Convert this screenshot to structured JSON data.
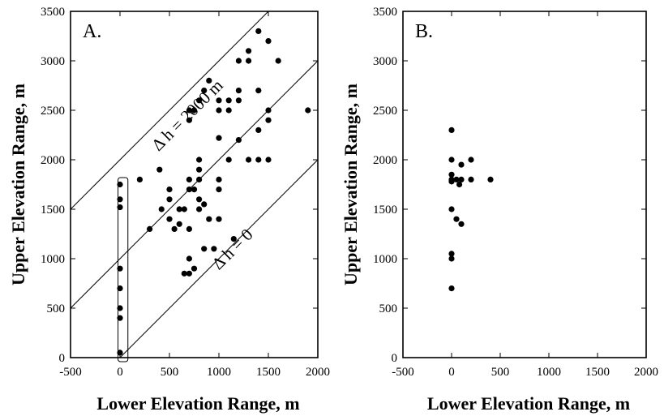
{
  "chart_data": [
    {
      "type": "scatter",
      "panel_label": "A.",
      "xlabel": "Lower Elevation Range, m",
      "ylabel": "Upper Elevation Range, m",
      "xlim": [
        -500,
        2000
      ],
      "ylim": [
        0,
        3500
      ],
      "xticks": [
        -500,
        0,
        500,
        1000,
        1500,
        2000
      ],
      "yticks": [
        0,
        500,
        1000,
        1500,
        2000,
        2500,
        3000,
        3500
      ],
      "grid": false,
      "annotations": [
        {
          "text": "Δ h = 2000 m",
          "kind": "reference-line",
          "offset": 2000
        },
        {
          "text": "Δ h = 0",
          "kind": "reference-line",
          "offset": 0
        }
      ],
      "reference_lines": [
        {
          "label": "",
          "offset": 1000
        }
      ],
      "highlight_box": {
        "x_range": [
          -20,
          80
        ],
        "y_range": [
          0,
          1820
        ]
      },
      "points": [
        [
          0,
          1750
        ],
        [
          0,
          1600
        ],
        [
          0,
          1520
        ],
        [
          0,
          900
        ],
        [
          0,
          700
        ],
        [
          0,
          500
        ],
        [
          0,
          400
        ],
        [
          0,
          50
        ],
        [
          200,
          1800
        ],
        [
          300,
          1300
        ],
        [
          400,
          1900
        ],
        [
          420,
          1500
        ],
        [
          500,
          1700
        ],
        [
          500,
          1600
        ],
        [
          500,
          1400
        ],
        [
          550,
          1300
        ],
        [
          600,
          1500
        ],
        [
          600,
          1350
        ],
        [
          650,
          1500
        ],
        [
          650,
          850
        ],
        [
          700,
          2500
        ],
        [
          700,
          2400
        ],
        [
          700,
          1800
        ],
        [
          700,
          1700
        ],
        [
          700,
          1300
        ],
        [
          700,
          1000
        ],
        [
          700,
          850
        ],
        [
          750,
          2500
        ],
        [
          750,
          1700
        ],
        [
          750,
          900
        ],
        [
          800,
          2600
        ],
        [
          800,
          2000
        ],
        [
          800,
          1900
        ],
        [
          800,
          1800
        ],
        [
          800,
          1600
        ],
        [
          800,
          1500
        ],
        [
          850,
          2700
        ],
        [
          850,
          1550
        ],
        [
          850,
          1100
        ],
        [
          900,
          2800
        ],
        [
          900,
          1400
        ],
        [
          950,
          1100
        ],
        [
          1000,
          2600
        ],
        [
          1000,
          2500
        ],
        [
          1000,
          2220
        ],
        [
          1000,
          1800
        ],
        [
          1000,
          1700
        ],
        [
          1000,
          1400
        ],
        [
          1100,
          2600
        ],
        [
          1100,
          2500
        ],
        [
          1100,
          2000
        ],
        [
          1150,
          1200
        ],
        [
          1200,
          3000
        ],
        [
          1200,
          2700
        ],
        [
          1200,
          2600
        ],
        [
          1200,
          2200
        ],
        [
          1300,
          3100
        ],
        [
          1300,
          3000
        ],
        [
          1300,
          2000
        ],
        [
          1400,
          3300
        ],
        [
          1400,
          2700
        ],
        [
          1400,
          2300
        ],
        [
          1400,
          2000
        ],
        [
          1500,
          3200
        ],
        [
          1500,
          2500
        ],
        [
          1500,
          2400
        ],
        [
          1500,
          2000
        ],
        [
          1600,
          3000
        ],
        [
          1900,
          2500
        ]
      ]
    },
    {
      "type": "scatter",
      "panel_label": "B.",
      "xlabel": "Lower Elevation Range, m",
      "ylabel": "Upper Elevation Range, m",
      "xlim": [
        -500,
        2000
      ],
      "ylim": [
        0,
        3500
      ],
      "xticks": [
        -500,
        0,
        500,
        1000,
        1500,
        2000
      ],
      "yticks": [
        0,
        500,
        1000,
        1500,
        2000,
        2500,
        3000,
        3500
      ],
      "grid": false,
      "points": [
        [
          0,
          2300
        ],
        [
          0,
          2000
        ],
        [
          0,
          1850
        ],
        [
          0,
          1800
        ],
        [
          0,
          1780
        ],
        [
          0,
          1500
        ],
        [
          0,
          1050
        ],
        [
          0,
          1000
        ],
        [
          0,
          700
        ],
        [
          50,
          1400
        ],
        [
          50,
          1800
        ],
        [
          80,
          1750
        ],
        [
          100,
          1950
        ],
        [
          100,
          1800
        ],
        [
          100,
          1350
        ],
        [
          200,
          2000
        ],
        [
          200,
          1800
        ],
        [
          400,
          1800
        ]
      ]
    }
  ]
}
